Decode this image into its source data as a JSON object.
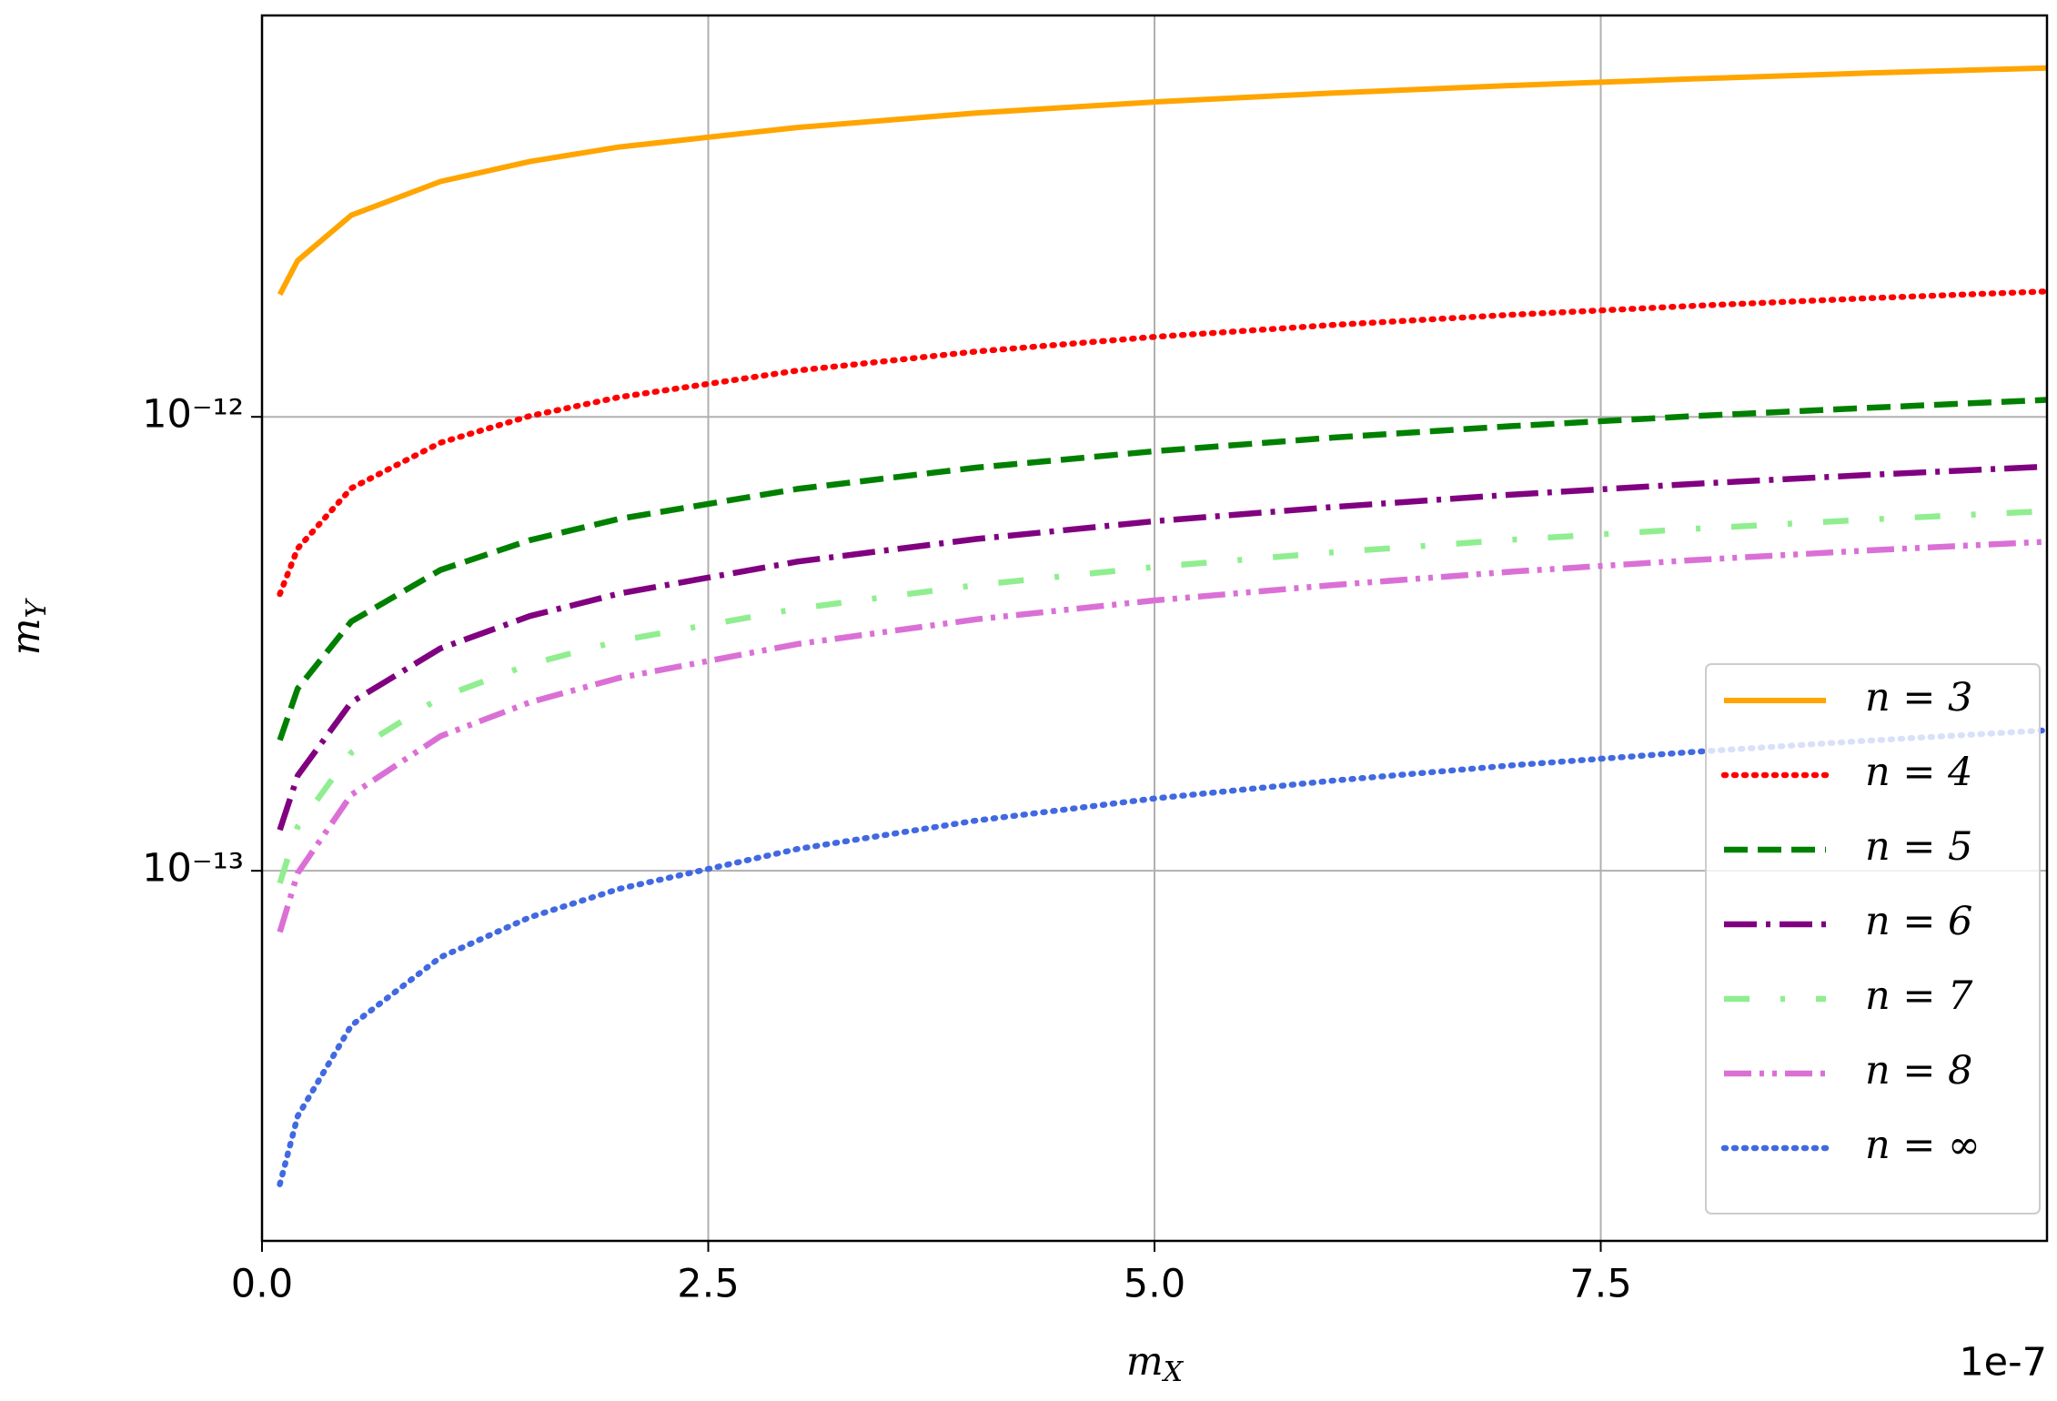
{
  "chart_data": {
    "type": "line",
    "xlabel": "mX",
    "ylabel": "mY",
    "x_offset_label": "1e-7",
    "log_y": true,
    "grid": true,
    "legend": "lower right",
    "xlim": [
      0,
      1e-06
    ],
    "ylim": [
      1.53e-14,
      7.66e-12
    ],
    "xticks": [
      {
        "value": 0,
        "label": "0.0"
      },
      {
        "value": 2.5e-07,
        "label": "2.5"
      },
      {
        "value": 5e-07,
        "label": "5.0"
      },
      {
        "value": 7.5e-07,
        "label": "7.5"
      }
    ],
    "yticks": [
      {
        "value": 1e-13,
        "label": "10⁻¹³"
      },
      {
        "value": 1e-12,
        "label": "10⁻¹²"
      }
    ],
    "x": [
      1e-08,
      2e-08,
      5e-08,
      1e-07,
      1.5e-07,
      2e-07,
      3e-07,
      4e-07,
      5e-07,
      6e-07,
      7e-07,
      8e-07,
      9e-07,
      1e-06
    ],
    "series": [
      {
        "name": "n = 3",
        "color": "#ffa500",
        "dash": "solid",
        "values": [
          1.86e-12,
          2.21e-12,
          2.78e-12,
          3.3e-12,
          3.65e-12,
          3.93e-12,
          4.34e-12,
          4.67e-12,
          4.94e-12,
          5.17e-12,
          5.37e-12,
          5.55e-12,
          5.72e-12,
          5.87e-12
        ]
      },
      {
        "name": "n = 4",
        "color": "#ff0000",
        "dash": "dotted",
        "values": [
          4.07e-13,
          5.13e-13,
          6.96e-13,
          8.77e-13,
          1.004e-12,
          1.105e-12,
          1.265e-12,
          1.393e-12,
          1.5e-12,
          1.594e-12,
          1.678e-12,
          1.754e-12,
          1.825e-12,
          1.89e-12
        ]
      },
      {
        "name": "n = 5",
        "color": "#008000",
        "dash": "dashed",
        "values": [
          1.94e-13,
          2.52e-13,
          3.54e-13,
          4.6e-13,
          5.35e-13,
          5.96e-13,
          6.94e-13,
          7.73e-13,
          8.4e-13,
          9e-13,
          9.54e-13,
          1.003e-12,
          1.047e-12,
          1.09e-12
        ]
      },
      {
        "name": "n = 6",
        "color": "#800080",
        "dash": "dashdot",
        "values": [
          1.23e-13,
          1.62e-13,
          2.35e-13,
          3.09e-13,
          3.64e-13,
          4.08e-13,
          4.8e-13,
          5.38e-13,
          5.89e-13,
          6.33e-13,
          6.74e-13,
          7.11e-13,
          7.45e-13,
          7.77e-13
        ]
      },
      {
        "name": "n = 7",
        "color": "#90ee90",
        "dash": "loosedashdot",
        "values": [
          9.39e-14,
          1.25e-13,
          1.82e-13,
          2.41e-13,
          2.85e-13,
          3.21e-13,
          3.78e-13,
          4.26e-13,
          4.67e-13,
          5.03e-13,
          5.36e-13,
          5.66e-13,
          5.94e-13,
          6.2e-13
        ]
      },
      {
        "name": "n = 8",
        "color": "#da70d6",
        "dash": "dashdotdot",
        "values": [
          7.33e-14,
          9.88e-14,
          1.47e-13,
          1.98e-13,
          2.35e-13,
          2.66e-13,
          3.16e-13,
          3.58e-13,
          3.94e-13,
          4.26e-13,
          4.56e-13,
          4.83e-13,
          5.08e-13,
          5.31e-13
        ]
      },
      {
        "name": "n = ∞",
        "color": "#4169e1",
        "dash": "dotted",
        "values": [
          2.04e-14,
          2.88e-14,
          4.56e-14,
          6.45e-14,
          7.9e-14,
          9.12e-14,
          1.117e-13,
          1.29e-13,
          1.443e-13,
          1.58e-13,
          1.707e-13,
          1.825e-13,
          1.935e-13,
          2.04e-13
        ]
      }
    ]
  }
}
